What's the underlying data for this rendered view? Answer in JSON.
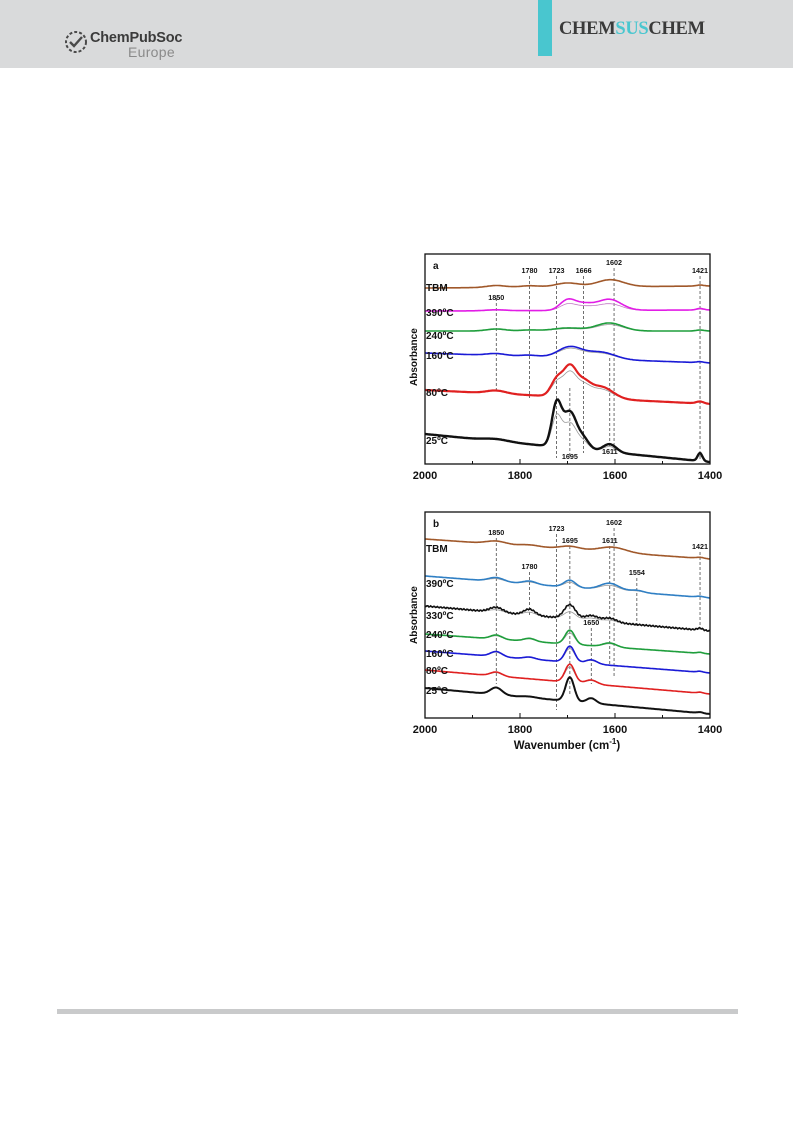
{
  "header": {
    "publisher_name": "ChemPubSoc",
    "publisher_region": "Europe",
    "journal_left": "CHEM",
    "journal_mid": "SUS",
    "journal_right": "CHEM",
    "accent_color": "#49c6cf"
  },
  "chart_data": [
    {
      "type": "line",
      "panel_label": "a",
      "xlim": [
        2000,
        1400
      ],
      "x_ticks": [
        "2000",
        "1800",
        "1600",
        "1400"
      ],
      "ylabel": "Absorbance",
      "xlabel": "",
      "peak_labels": [
        "1850",
        "1780",
        "1723",
        "1666",
        "1602",
        "1421",
        "1695",
        "1611"
      ],
      "series": [
        {
          "name": "TBM",
          "color": "#a0582a"
        },
        {
          "name": "390ºC",
          "color": "#e21de6"
        },
        {
          "name": "240ºC",
          "color": "#1f9e3c"
        },
        {
          "name": "160ºC",
          "color": "#1a1ad6"
        },
        {
          "name": "80ºC",
          "color": "#e02020"
        },
        {
          "name": "25ºC",
          "color": "#111111"
        }
      ]
    },
    {
      "type": "line",
      "panel_label": "b",
      "xlim": [
        2000,
        1400
      ],
      "x_ticks": [
        "2000",
        "1800",
        "1600",
        "1400"
      ],
      "ylabel": "Absorbance",
      "xlabel": "Wavenumber (cm",
      "xlabel_sup": "-1",
      "xlabel_end": ")",
      "peak_labels": [
        "1850",
        "1723",
        "1695",
        "1611",
        "1602",
        "1421",
        "1780",
        "1554",
        "1650"
      ],
      "series": [
        {
          "name": "TBM",
          "color": "#a0582a"
        },
        {
          "name": "390ºC",
          "color": "#2f7fc4"
        },
        {
          "name": "330ºC",
          "color": "#111111"
        },
        {
          "name": "240ºC",
          "color": "#1f9e3c"
        },
        {
          "name": "160ºC",
          "color": "#1a1ad6"
        },
        {
          "name": "80ºC",
          "color": "#e02020"
        },
        {
          "name": "25ºC",
          "color": "#111111"
        }
      ]
    }
  ]
}
